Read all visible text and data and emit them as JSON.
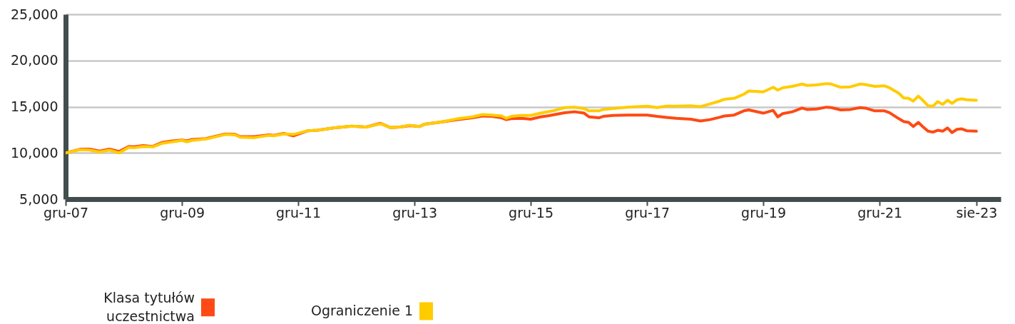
{
  "chart_data": {
    "type": "line",
    "x": [
      "2007-12",
      "2008-03",
      "2008-05",
      "2008-07",
      "2008-09",
      "2008-11",
      "2009-01",
      "2009-02",
      "2009-04",
      "2009-06",
      "2009-08",
      "2009-10",
      "2009-12",
      "2010-01",
      "2010-02",
      "2010-05",
      "2010-07",
      "2010-09",
      "2010-11",
      "2010-12",
      "2011-03",
      "2011-06",
      "2011-07",
      "2011-09",
      "2011-11",
      "2012-02",
      "2012-04",
      "2012-06",
      "2012-08",
      "2012-11",
      "2013-02",
      "2013-05",
      "2013-07",
      "2013-09",
      "2013-11",
      "2014-01",
      "2014-02",
      "2014-05",
      "2014-07",
      "2014-09",
      "2014-12",
      "2015-02",
      "2015-04",
      "2015-06",
      "2015-07",
      "2015-08",
      "2015-10",
      "2015-12",
      "2016-02",
      "2016-04",
      "2016-05",
      "2016-07",
      "2016-09",
      "2016-11",
      "2016-12",
      "2017-02",
      "2017-03",
      "2017-05",
      "2017-08",
      "2017-12",
      "2018-02",
      "2018-04",
      "2018-06",
      "2018-09",
      "2018-11",
      "2019-01",
      "2019-03",
      "2019-04",
      "2019-06",
      "2019-08",
      "2019-09",
      "2019-12",
      "2020-02",
      "2020-03",
      "2020-04",
      "2020-06",
      "2020-08",
      "2020-09",
      "2020-11",
      "2021-01",
      "2021-02",
      "2021-04",
      "2021-06",
      "2021-08",
      "2021-09",
      "2021-11",
      "2022-01",
      "2022-02",
      "2022-04",
      "2022-05",
      "2022-06",
      "2022-07",
      "2022-08",
      "2022-09",
      "2022-10",
      "2022-11",
      "2022-12",
      "2023-01",
      "2023-02",
      "2023-03",
      "2023-04",
      "2023-05",
      "2023-06",
      "2023-08"
    ],
    "series": [
      {
        "name": "Klasa tytułów uczestnictwa",
        "color": "#fe4a14",
        "values": [
          10000,
          10400,
          10400,
          10200,
          10400,
          10150,
          10700,
          10650,
          10800,
          10700,
          11150,
          11300,
          11400,
          11300,
          11450,
          11550,
          11800,
          12050,
          12000,
          11750,
          11750,
          11950,
          11900,
          12100,
          11850,
          12400,
          12450,
          12600,
          12750,
          12900,
          12800,
          13200,
          12750,
          12800,
          12950,
          12850,
          13100,
          13300,
          13450,
          13600,
          13800,
          14000,
          13950,
          13800,
          13600,
          13700,
          13750,
          13650,
          13900,
          14050,
          14150,
          14350,
          14450,
          14300,
          13900,
          13800,
          13950,
          14050,
          14100,
          14100,
          13950,
          13850,
          13750,
          13650,
          13450,
          13600,
          13850,
          14000,
          14100,
          14550,
          14650,
          14300,
          14600,
          13900,
          14250,
          14450,
          14850,
          14700,
          14750,
          14950,
          14900,
          14650,
          14700,
          14900,
          14850,
          14550,
          14550,
          14350,
          13700,
          13400,
          13300,
          12850,
          13300,
          12800,
          12350,
          12250,
          12450,
          12350,
          12700,
          12200,
          12550,
          12600,
          12400,
          12350
        ]
      },
      {
        "name": "Ograniczenie 1",
        "color": "#ffcc00",
        "values": [
          10000,
          10350,
          10300,
          10100,
          10300,
          10000,
          10600,
          10550,
          10700,
          10650,
          11050,
          11200,
          11350,
          11200,
          11350,
          11500,
          11750,
          12000,
          11950,
          11700,
          11650,
          11900,
          11850,
          12050,
          12000,
          12400,
          12450,
          12600,
          12750,
          12900,
          12800,
          13150,
          12750,
          12800,
          13000,
          12850,
          13100,
          13300,
          13500,
          13700,
          13900,
          14150,
          14100,
          14000,
          13750,
          13950,
          14050,
          14050,
          14300,
          14500,
          14600,
          14900,
          14950,
          14800,
          14550,
          14550,
          14700,
          14800,
          14950,
          15050,
          14900,
          15050,
          15050,
          15100,
          15000,
          15300,
          15600,
          15800,
          15900,
          16350,
          16700,
          16600,
          17100,
          16800,
          17050,
          17200,
          17450,
          17300,
          17350,
          17500,
          17450,
          17100,
          17150,
          17450,
          17400,
          17200,
          17250,
          17050,
          16450,
          15950,
          15900,
          15600,
          16150,
          15650,
          15100,
          15050,
          15550,
          15250,
          15700,
          15350,
          15750,
          15850,
          15750,
          15700
        ]
      }
    ],
    "xlim": [
      "2007-12",
      "2024-01"
    ],
    "xticks": [
      {
        "value": "2007-12",
        "label": "gru-07"
      },
      {
        "value": "2009-12",
        "label": "gru-09"
      },
      {
        "value": "2011-12",
        "label": "gru-11"
      },
      {
        "value": "2013-12",
        "label": "gru-13"
      },
      {
        "value": "2015-12",
        "label": "gru-15"
      },
      {
        "value": "2017-12",
        "label": "gru-17"
      },
      {
        "value": "2019-12",
        "label": "gru-19"
      },
      {
        "value": "2021-12",
        "label": "gru-21"
      },
      {
        "value": "2023-08",
        "label": "sie-23"
      }
    ],
    "ylim": [
      5000,
      25000
    ],
    "yticks": [
      {
        "value": 5000,
        "label": "5,000"
      },
      {
        "value": 10000,
        "label": "10,000"
      },
      {
        "value": 15000,
        "label": "15,000"
      },
      {
        "value": 20000,
        "label": "20,000"
      },
      {
        "value": 25000,
        "label": "25,000"
      }
    ],
    "grid": "y",
    "legend": "bottom left"
  }
}
